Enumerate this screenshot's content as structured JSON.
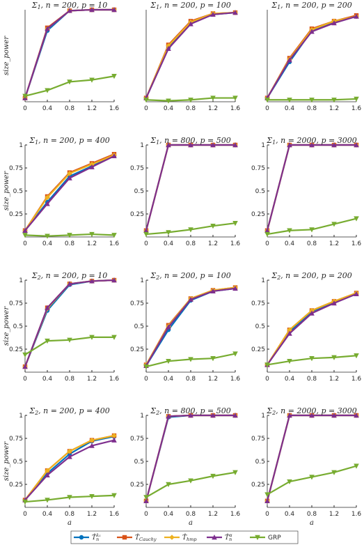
{
  "series_meta": [
    {
      "name": "T̂ₙ^{λ₁}",
      "color": "#0072BD",
      "marker": "circle"
    },
    {
      "name": "T̂_Cauchy",
      "color": "#D95319",
      "marker": "square"
    },
    {
      "name": "T̂_hmp",
      "color": "#EDB120",
      "marker": "diamond"
    },
    {
      "name": "T̂ₙ^α",
      "color": "#7E2F8E",
      "marker": "triangle-up"
    },
    {
      "name": "GRP",
      "color": "#77AC30",
      "marker": "triangle-down"
    }
  ],
  "legend": {
    "items": [
      {
        "main": "T̂",
        "sub": "n",
        "sup": "λ₁"
      },
      {
        "main": "T̂",
        "sub": "Cauchy",
        "sup": ""
      },
      {
        "main": "T̂",
        "sub": "hmp",
        "sup": ""
      },
      {
        "main": "T̂",
        "sub": "n",
        "sup": "α"
      },
      {
        "main": "GRP",
        "sub": "",
        "sup": ""
      }
    ],
    "placement": "bottom-center"
  },
  "chart_data": [
    {
      "type": "line",
      "title": "Σ1, n = 200, p = 10",
      "tlabel": {
        "sig": "Σ",
        "sub": "1",
        "rest": ", n = 200, p = 10"
      },
      "ylabel": "size_power",
      "xlabel": "",
      "x": [
        0,
        0.4,
        0.8,
        1.2,
        1.6
      ],
      "xticks": [
        "0",
        "0.4",
        "0.8",
        "1.2",
        "1.6"
      ],
      "xlim": [
        0,
        1.6
      ],
      "ylim": [
        0.03,
        1
      ],
      "yticks": [],
      "series": [
        {
          "values": [
            0.07,
            0.78,
            0.99,
            1.0,
            1.0
          ]
        },
        {
          "values": [
            0.07,
            0.81,
            0.99,
            1.0,
            1.0
          ]
        },
        {
          "values": [
            0.07,
            0.8,
            0.99,
            1.0,
            1.0
          ]
        },
        {
          "values": [
            0.07,
            0.8,
            0.99,
            1.0,
            1.0
          ]
        },
        {
          "values": [
            0.09,
            0.15,
            0.24,
            0.26,
            0.3
          ]
        }
      ]
    },
    {
      "type": "line",
      "title": "Σ1, n = 200, p = 100",
      "tlabel": {
        "sig": "Σ",
        "sub": "1",
        "rest": ", n = 200, p = 100"
      },
      "ylabel": "",
      "xlabel": "",
      "x": [
        0,
        0.4,
        0.8,
        1.2,
        1.6
      ],
      "xticks": [
        "0",
        "0.4",
        "0.8",
        "1.2",
        "1.6"
      ],
      "xlim": [
        0,
        1.6
      ],
      "ylim": [
        0.03,
        1
      ],
      "yticks": [],
      "series": [
        {
          "values": [
            0.07,
            0.6,
            0.86,
            0.95,
            0.97
          ]
        },
        {
          "values": [
            0.07,
            0.63,
            0.88,
            0.96,
            0.97
          ]
        },
        {
          "values": [
            0.07,
            0.62,
            0.87,
            0.96,
            0.97
          ]
        },
        {
          "values": [
            0.07,
            0.59,
            0.85,
            0.95,
            0.97
          ]
        },
        {
          "values": [
            0.05,
            0.04,
            0.05,
            0.07,
            0.07
          ]
        }
      ]
    },
    {
      "type": "line",
      "title": "Σ1, n = 200, p = 200",
      "tlabel": {
        "sig": "Σ",
        "sub": "1",
        "rest": ", n = 200, p = 200"
      },
      "ylabel": "",
      "xlabel": "",
      "x": [
        0,
        0.4,
        0.8,
        1.2,
        1.6
      ],
      "xticks": [
        "0",
        "0.4",
        "0.8",
        "1.2",
        "1.6"
      ],
      "xlim": [
        0,
        1.6
      ],
      "ylim": [
        0.03,
        1
      ],
      "yticks": [],
      "series": [
        {
          "values": [
            0.07,
            0.45,
            0.78,
            0.87,
            0.93
          ]
        },
        {
          "values": [
            0.07,
            0.49,
            0.8,
            0.88,
            0.94
          ]
        },
        {
          "values": [
            0.07,
            0.48,
            0.79,
            0.88,
            0.93
          ]
        },
        {
          "values": [
            0.07,
            0.47,
            0.77,
            0.86,
            0.93
          ]
        },
        {
          "values": [
            0.05,
            0.05,
            0.05,
            0.05,
            0.06
          ]
        }
      ]
    },
    {
      "type": "line",
      "title": "Σ1, n = 200, p = 400",
      "tlabel": {
        "sig": "Σ",
        "sub": "1",
        "rest": ", n = 200, p = 400"
      },
      "ylabel": "size_power",
      "xlabel": "",
      "x": [
        0,
        0.4,
        0.8,
        1.2,
        1.6
      ],
      "xticks": [
        "0",
        "0.4",
        "0.8",
        "1.2",
        "1.6"
      ],
      "xlim": [
        0,
        1.6
      ],
      "ylim": [
        0,
        1
      ],
      "yticks": [
        "0.25",
        "0.5",
        "0.75",
        "1"
      ],
      "series": [
        {
          "values": [
            0.07,
            0.38,
            0.66,
            0.77,
            0.88
          ]
        },
        {
          "values": [
            0.07,
            0.44,
            0.7,
            0.8,
            0.9
          ]
        },
        {
          "values": [
            0.07,
            0.43,
            0.69,
            0.79,
            0.89
          ]
        },
        {
          "values": [
            0.07,
            0.36,
            0.64,
            0.76,
            0.88
          ]
        },
        {
          "values": [
            0.02,
            0.01,
            0.02,
            0.03,
            0.02
          ]
        }
      ]
    },
    {
      "type": "line",
      "title": "Σ1, n = 800, p = 500",
      "tlabel": {
        "sig": "Σ",
        "sub": "1",
        "rest": ", n = 800, p = 500"
      },
      "ylabel": "",
      "xlabel": "",
      "x": [
        0,
        0.4,
        0.8,
        1.2,
        1.6
      ],
      "xticks": [
        "0",
        "0.4",
        "0.8",
        "1.2",
        "1.6"
      ],
      "xlim": [
        0,
        1.6
      ],
      "ylim": [
        0,
        1
      ],
      "yticks": [
        "0.25",
        "0.5",
        "0.75",
        "1"
      ],
      "series": [
        {
          "values": [
            0.07,
            1.0,
            1.0,
            1.0,
            1.0
          ]
        },
        {
          "values": [
            0.07,
            1.0,
            1.0,
            1.0,
            1.0
          ]
        },
        {
          "values": [
            0.07,
            1.0,
            1.0,
            1.0,
            1.0
          ]
        },
        {
          "values": [
            0.07,
            1.0,
            1.0,
            1.0,
            1.0
          ]
        },
        {
          "values": [
            0.03,
            0.05,
            0.08,
            0.12,
            0.15
          ]
        }
      ]
    },
    {
      "type": "line",
      "title": "Σ1, n = 2000, p = 3000",
      "tlabel": {
        "sig": "Σ",
        "sub": "1",
        "rest": ", n = 2000, p = 3000"
      },
      "ylabel": "",
      "xlabel": "",
      "x": [
        0,
        0.4,
        0.8,
        1.2,
        1.6
      ],
      "xticks": [
        "0",
        "0.4",
        "0.8",
        "1.2",
        "1.6"
      ],
      "xlim": [
        0,
        1.6
      ],
      "ylim": [
        0,
        1
      ],
      "yticks": [
        "0.25",
        "0.5",
        "0.75",
        "1"
      ],
      "series": [
        {
          "values": [
            0.07,
            1.0,
            1.0,
            1.0,
            1.0
          ]
        },
        {
          "values": [
            0.07,
            1.0,
            1.0,
            1.0,
            1.0
          ]
        },
        {
          "values": [
            0.07,
            1.0,
            1.0,
            1.0,
            1.0
          ]
        },
        {
          "values": [
            0.07,
            1.0,
            1.0,
            1.0,
            1.0
          ]
        },
        {
          "values": [
            0.03,
            0.07,
            0.08,
            0.14,
            0.2
          ]
        }
      ]
    },
    {
      "type": "line",
      "title": "Σ2, n = 200, p = 10",
      "tlabel": {
        "sig": "Σ",
        "sub": "2",
        "rest": ", n = 200, p = 10"
      },
      "ylabel": "size_power",
      "xlabel": "",
      "x": [
        0,
        0.4,
        0.8,
        1.2,
        1.6
      ],
      "xticks": [
        "0",
        "0.4",
        "0.8",
        "1.2",
        "1.6"
      ],
      "xlim": [
        0,
        1.6
      ],
      "ylim": [
        0,
        1
      ],
      "yticks": [
        "0.25",
        "0.5",
        "0.75",
        "1"
      ],
      "series": [
        {
          "values": [
            0.06,
            0.67,
            0.95,
            0.99,
            1.0
          ]
        },
        {
          "values": [
            0.06,
            0.7,
            0.96,
            0.99,
            1.0
          ]
        },
        {
          "values": [
            0.06,
            0.69,
            0.96,
            0.99,
            1.0
          ]
        },
        {
          "values": [
            0.06,
            0.7,
            0.96,
            0.99,
            1.0
          ]
        },
        {
          "values": [
            0.19,
            0.34,
            0.35,
            0.38,
            0.38
          ]
        }
      ]
    },
    {
      "type": "line",
      "title": "Σ2, n = 200, p = 100",
      "tlabel": {
        "sig": "Σ",
        "sub": "2",
        "rest": ", n = 200, p = 100"
      },
      "ylabel": "",
      "xlabel": "",
      "x": [
        0,
        0.4,
        0.8,
        1.2,
        1.6
      ],
      "xticks": [
        "0",
        "0.4",
        "0.8",
        "1.2",
        "1.6"
      ],
      "xlim": [
        0,
        1.6
      ],
      "ylim": [
        0,
        1
      ],
      "yticks": [
        "0.25",
        "0.5",
        "0.75",
        "1"
      ],
      "series": [
        {
          "values": [
            0.07,
            0.46,
            0.78,
            0.88,
            0.91
          ]
        },
        {
          "values": [
            0.08,
            0.51,
            0.8,
            0.89,
            0.92
          ]
        },
        {
          "values": [
            0.08,
            0.5,
            0.8,
            0.89,
            0.92
          ]
        },
        {
          "values": [
            0.07,
            0.49,
            0.79,
            0.88,
            0.91
          ]
        },
        {
          "values": [
            0.06,
            0.12,
            0.14,
            0.15,
            0.2
          ]
        }
      ]
    },
    {
      "type": "line",
      "title": "Σ2, n = 200, p = 200",
      "tlabel": {
        "sig": "Σ",
        "sub": "2",
        "rest": ", n = 200, p = 200"
      },
      "ylabel": "",
      "xlabel": "",
      "x": [
        0,
        0.4,
        0.8,
        1.2,
        1.6
      ],
      "xticks": [
        "0",
        "0.4",
        "0.8",
        "1.2",
        "1.6"
      ],
      "xlim": [
        0,
        1.6
      ],
      "ylim": [
        0,
        1
      ],
      "yticks": [
        "0.25",
        "0.5",
        "0.75",
        "1"
      ],
      "series": [
        {
          "values": [
            0.08,
            0.44,
            0.66,
            0.76,
            0.85
          ]
        },
        {
          "values": [
            0.08,
            0.46,
            0.67,
            0.77,
            0.86
          ]
        },
        {
          "values": [
            0.08,
            0.46,
            0.67,
            0.77,
            0.86
          ]
        },
        {
          "values": [
            0.08,
            0.42,
            0.64,
            0.75,
            0.85
          ]
        },
        {
          "values": [
            0.08,
            0.12,
            0.15,
            0.16,
            0.18
          ]
        }
      ]
    },
    {
      "type": "line",
      "title": "Σ2, n = 200, p = 400",
      "tlabel": {
        "sig": "Σ",
        "sub": "2",
        "rest": ", n = 200, p = 400"
      },
      "ylabel": "size_power",
      "xlabel": "a",
      "x": [
        0,
        0.4,
        0.8,
        1.2,
        1.6
      ],
      "xticks": [
        "0",
        "0.4",
        "0.8",
        "1.2",
        "1.6"
      ],
      "xlim": [
        0,
        1.6
      ],
      "ylim": [
        0,
        1
      ],
      "yticks": [
        "0.25",
        "0.5",
        "0.75",
        "1"
      ],
      "series": [
        {
          "values": [
            0.08,
            0.37,
            0.58,
            0.72,
            0.77
          ]
        },
        {
          "values": [
            0.08,
            0.4,
            0.61,
            0.73,
            0.78
          ]
        },
        {
          "values": [
            0.08,
            0.4,
            0.61,
            0.73,
            0.78
          ]
        },
        {
          "values": [
            0.08,
            0.35,
            0.55,
            0.67,
            0.73
          ]
        },
        {
          "values": [
            0.06,
            0.08,
            0.11,
            0.12,
            0.13
          ]
        }
      ]
    },
    {
      "type": "line",
      "title": "Σ2, n = 800, p = 500",
      "tlabel": {
        "sig": "Σ",
        "sub": "2",
        "rest": ", n = 800, p = 500"
      },
      "ylabel": "",
      "xlabel": "a",
      "x": [
        0,
        0.4,
        0.8,
        1.2,
        1.6
      ],
      "xticks": [
        "0",
        "0.4",
        "0.8",
        "1.2",
        "1.6"
      ],
      "xlim": [
        0,
        1.6
      ],
      "ylim": [
        0,
        1
      ],
      "yticks": [
        "0.25",
        "0.5",
        "0.75",
        "1"
      ],
      "series": [
        {
          "values": [
            0.07,
            0.98,
            1.0,
            1.0,
            1.0
          ]
        },
        {
          "values": [
            0.07,
            0.99,
            1.0,
            1.0,
            1.0
          ]
        },
        {
          "values": [
            0.07,
            0.99,
            1.0,
            1.0,
            1.0
          ]
        },
        {
          "values": [
            0.07,
            0.99,
            1.0,
            1.0,
            1.0
          ]
        },
        {
          "values": [
            0.11,
            0.25,
            0.29,
            0.34,
            0.38
          ]
        }
      ]
    },
    {
      "type": "line",
      "title": "Σ2, n = 2000, p = 3000",
      "tlabel": {
        "sig": "Σ",
        "sub": "2",
        "rest": ", n = 2000, p = 3000"
      },
      "ylabel": "",
      "xlabel": "a",
      "x": [
        0,
        0.4,
        0.8,
        1.2,
        1.6
      ],
      "xticks": [
        "0",
        "0.4",
        "0.8",
        "1.2",
        "1.6"
      ],
      "xlim": [
        0,
        1.6
      ],
      "ylim": [
        0,
        1
      ],
      "yticks": [
        "0.25",
        "0.5",
        "0.75",
        "1"
      ],
      "series": [
        {
          "values": [
            0.07,
            1.0,
            1.0,
            1.0,
            1.0
          ]
        },
        {
          "values": [
            0.07,
            1.0,
            1.0,
            1.0,
            1.0
          ]
        },
        {
          "values": [
            0.07,
            1.0,
            1.0,
            1.0,
            1.0
          ]
        },
        {
          "values": [
            0.07,
            1.0,
            1.0,
            1.0,
            1.0
          ]
        },
        {
          "values": [
            0.14,
            0.28,
            0.33,
            0.38,
            0.45
          ]
        }
      ]
    }
  ]
}
